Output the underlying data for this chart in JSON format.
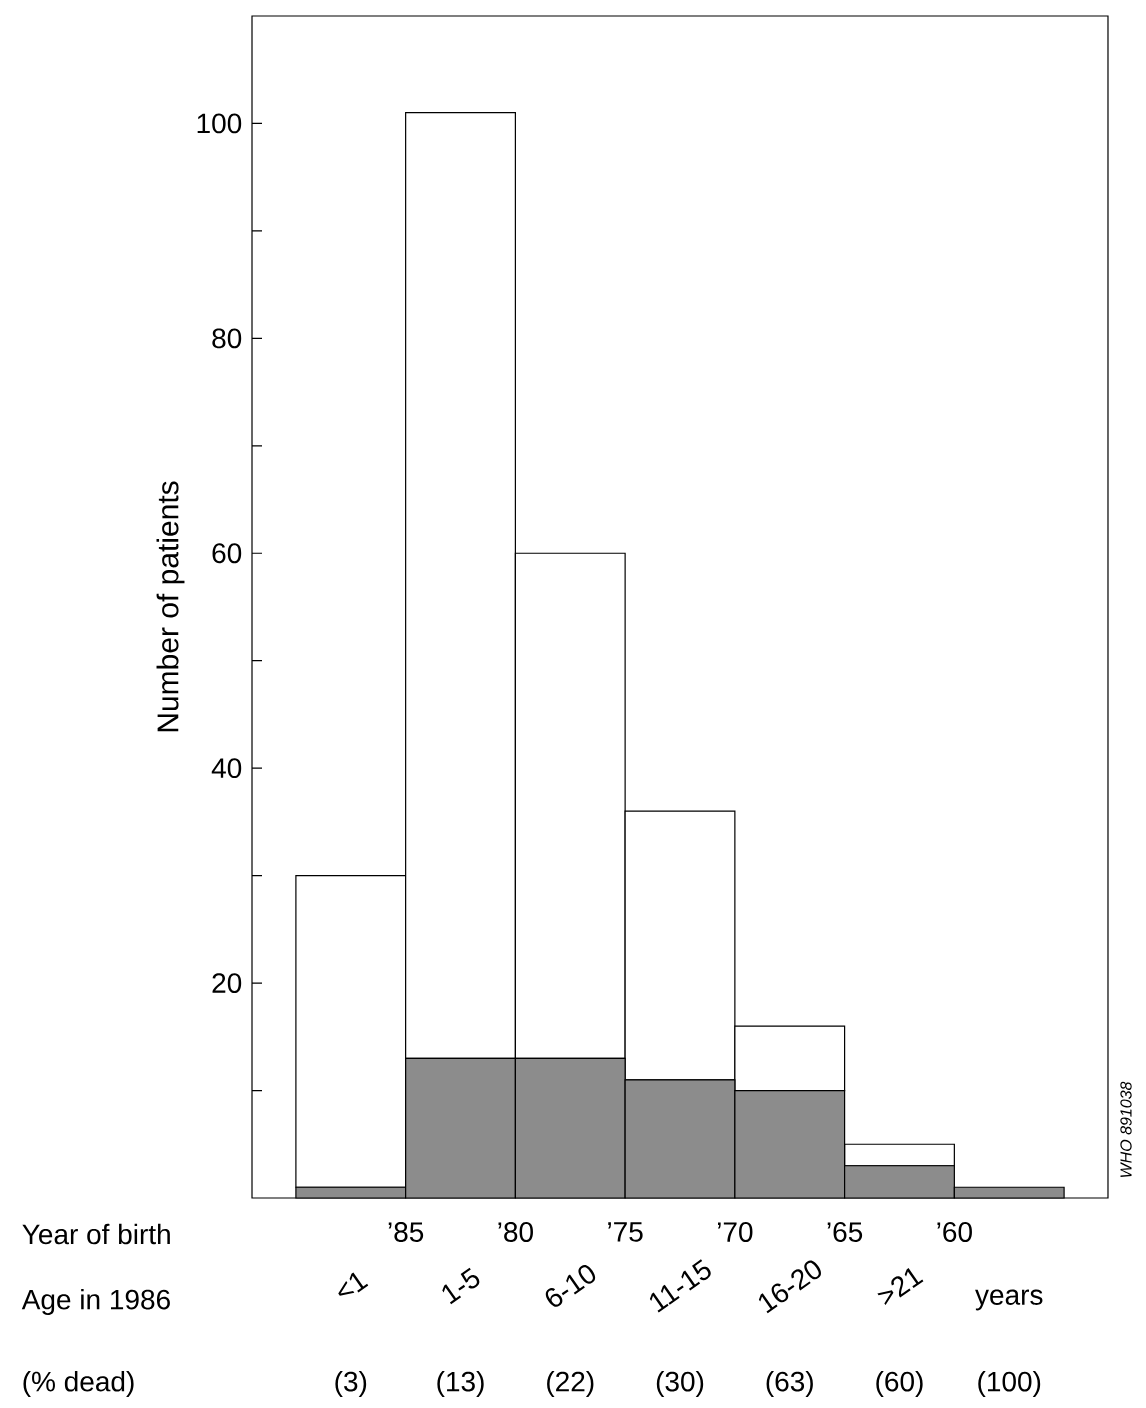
{
  "chart_data": {
    "type": "bar",
    "stacked": true,
    "categories": [
      "<1",
      "1-5",
      "6-10",
      "11-15",
      "16-20",
      ">21",
      null
    ],
    "series": [
      {
        "color": "#8c8c8c",
        "values": [
          1,
          13,
          13,
          11,
          10,
          3,
          1
        ]
      },
      {
        "color": "#ffffff",
        "values": [
          29,
          88,
          47,
          25,
          6,
          2,
          0
        ]
      }
    ],
    "ylabel": "Number of patients",
    "ylim": [
      0,
      110
    ],
    "yticks": [
      {
        "value": 10,
        "label": null
      },
      20,
      {
        "value": 30,
        "label": null
      },
      40,
      {
        "value": 50,
        "label": null
      },
      60,
      {
        "value": 70,
        "label": null
      },
      80,
      {
        "value": 90,
        "label": null
      },
      100
    ],
    "annotations": [
      "Year of birth",
      "’85",
      "’80",
      "’75",
      "’70",
      "’65",
      "’60",
      "Age in 1986",
      "years",
      "(% dead)",
      "(3)",
      "(13)",
      "(22)",
      "(30)",
      "(63)",
      "(60)",
      "(100)",
      "WHO 891038"
    ]
  }
}
